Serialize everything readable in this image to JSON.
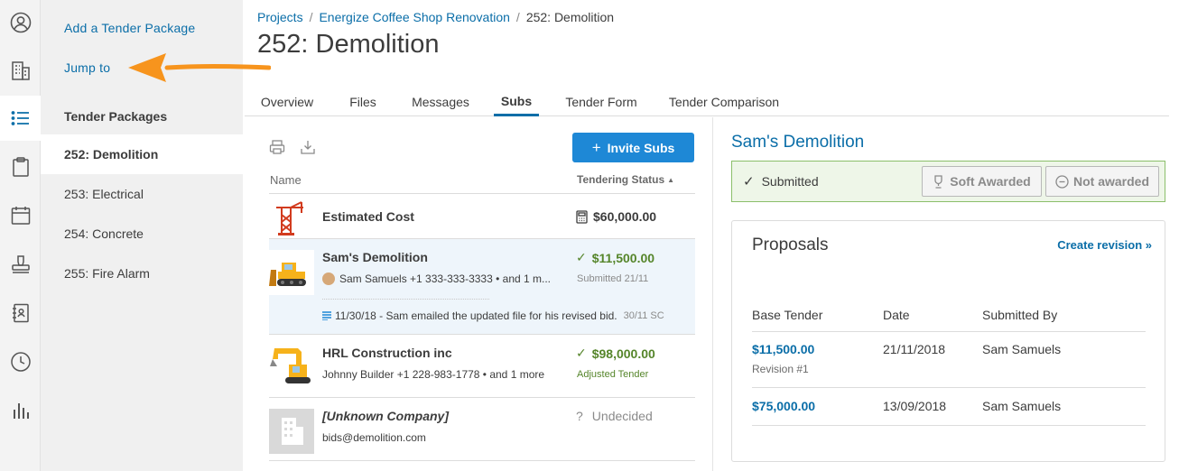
{
  "rail": {
    "icons": [
      "user-circle-icon",
      "building-icon",
      "list-icon",
      "clipboard-icon",
      "calendar-icon",
      "stamp-icon",
      "address-book-icon",
      "clock-icon",
      "bar-chart-icon"
    ],
    "active_index": 2
  },
  "sidebar": {
    "add_package": "Add a Tender Package",
    "jump_to": "Jump to",
    "heading": "Tender Packages",
    "items": [
      {
        "label": "252: Demolition",
        "active": true
      },
      {
        "label": "253: Electrical",
        "active": false
      },
      {
        "label": "254: Concrete",
        "active": false
      },
      {
        "label": "255: Fire Alarm",
        "active": false
      }
    ]
  },
  "breadcrumb": {
    "projects": "Projects",
    "project": "Energize Coffee Shop Renovation",
    "current": "252: Demolition",
    "separator": "/"
  },
  "page_title": "252: Demolition",
  "tabs": [
    {
      "label": "Overview",
      "active": false
    },
    {
      "label": "Files",
      "active": false
    },
    {
      "label": "Messages",
      "active": false
    },
    {
      "label": "Subs",
      "active": true
    },
    {
      "label": "Tender Form",
      "active": false
    },
    {
      "label": "Tender Comparison",
      "active": false
    }
  ],
  "list": {
    "invite_button": "Invite Subs",
    "invite_plus": "+",
    "col_name": "Name",
    "col_status": "Tendering Status",
    "estimated": {
      "name": "Estimated Cost",
      "amount": "$60,000.00"
    },
    "subs": [
      {
        "name": "Sam's Demolition",
        "contact": "Sam Samuels +1 333-333-3333 • and 1 m...",
        "amount": "$11,500.00",
        "status": "Submitted 21/11",
        "note": "11/30/18 - Sam emailed the updated file for his revised bid.",
        "note_meta": "30/11 SC"
      },
      {
        "name": "HRL Construction inc",
        "contact": "Johnny Builder +1 228-983-1778 • and 1 more",
        "amount": "$98,000.00",
        "status": "Adjusted Tender"
      },
      {
        "name": "[Unknown Company]",
        "contact": "bids@demolition.com",
        "amount": "Undecided",
        "question": "?"
      }
    ]
  },
  "detail": {
    "title": "Sam's Demolition",
    "submitted": "Submitted",
    "soft_awarded": "Soft Awarded",
    "not_awarded": "Not awarded",
    "proposals_title": "Proposals",
    "create_revision": "Create revision »",
    "headers": {
      "base": "Base Tender",
      "date": "Date",
      "by": "Submitted By"
    },
    "proposals": [
      {
        "amount": "$11,500.00",
        "revision": "Revision #1",
        "date": "21/11/2018",
        "by": "Sam Samuels"
      },
      {
        "amount": "$75,000.00",
        "date": "13/09/2018",
        "by": "Sam Samuels"
      }
    ]
  },
  "colors": {
    "accent": "#0b6ea8",
    "button": "#1e88d6",
    "success": "#55852a",
    "arrow": "#f7941d"
  }
}
